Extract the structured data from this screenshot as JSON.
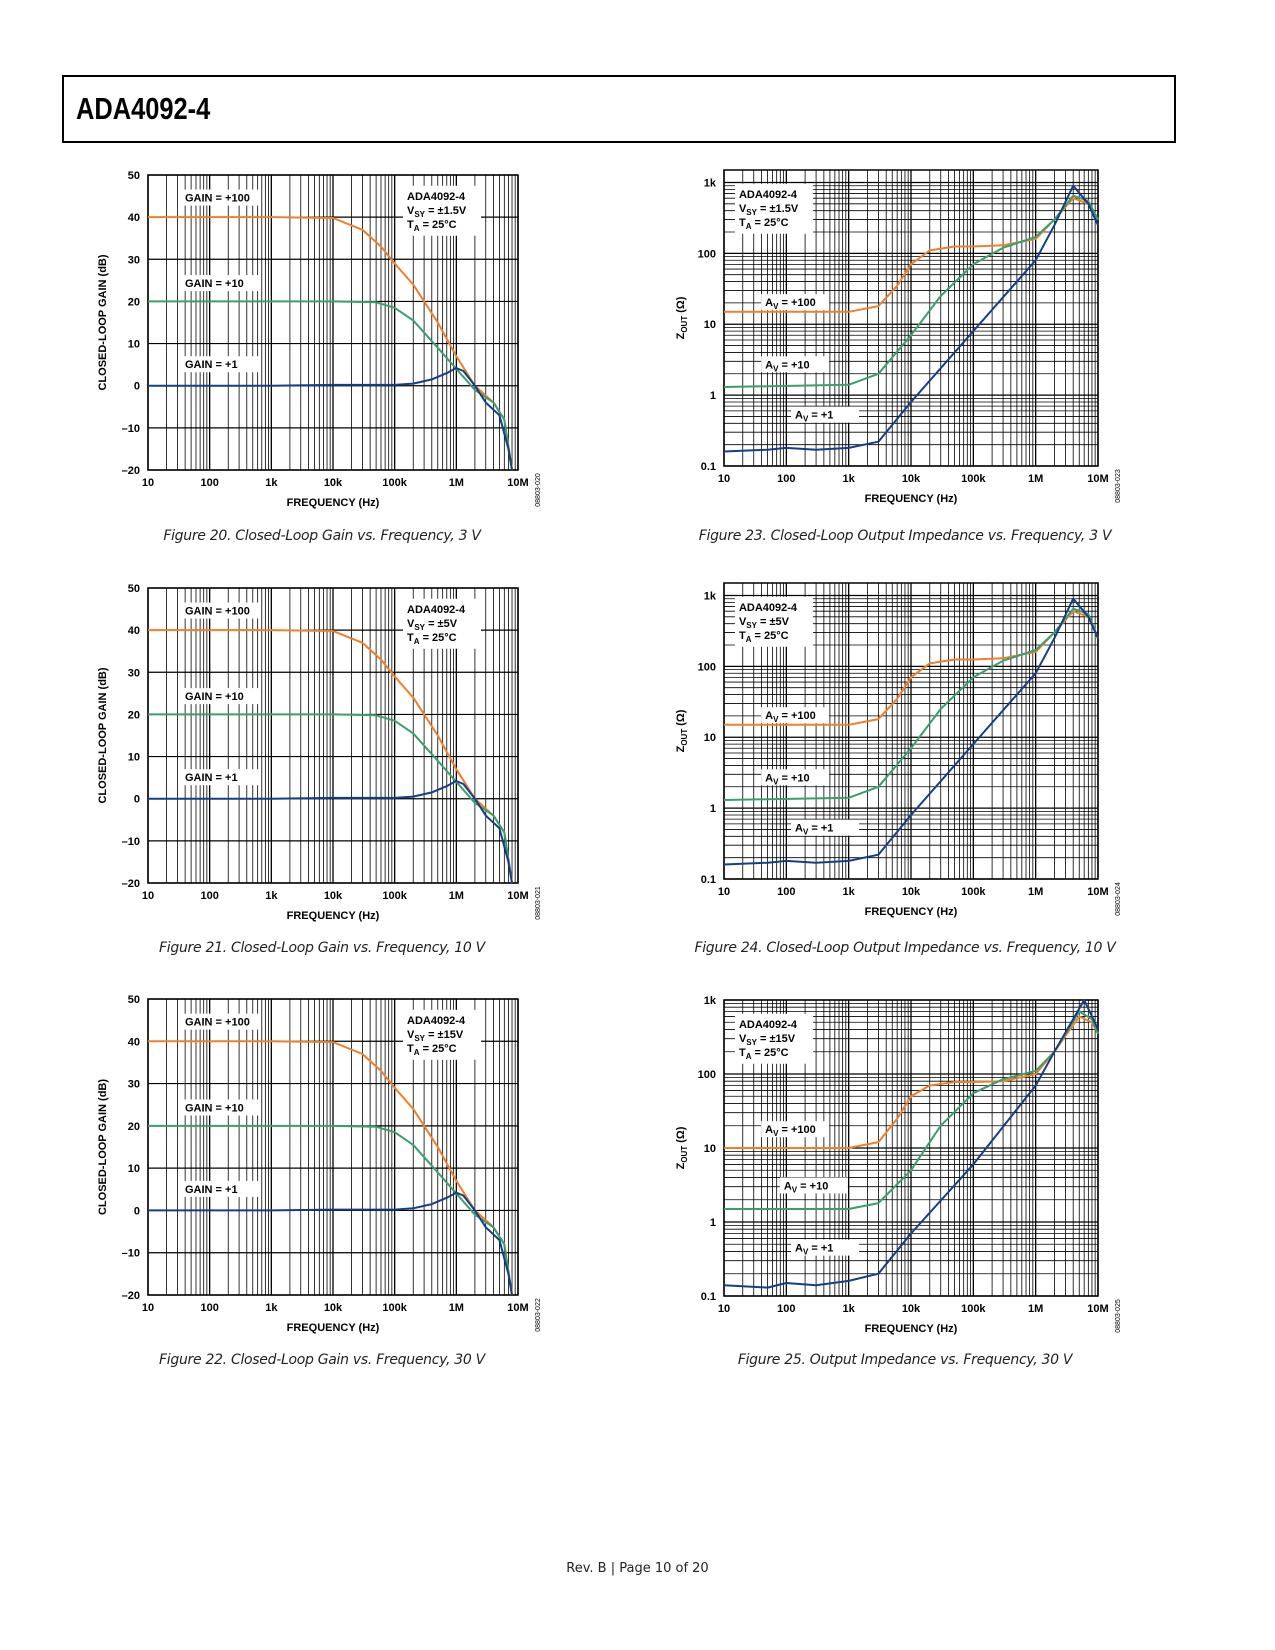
{
  "header": {
    "title": "ADA4092-4"
  },
  "footer": {
    "text": "Rev. B | Page 10 of 20"
  },
  "colors": {
    "gain100": "#f07f2a",
    "gain10": "#3a9e6e",
    "gain1": "#163e86",
    "grid": "#000000"
  },
  "chart_data": [
    {
      "id": "fig20",
      "type": "line",
      "scale": "semilogx",
      "caption": "Figure 20. Closed-Loop Gain vs. Frequency, 3 V",
      "code": "08803-020",
      "xlabel": "FREQUENCY (Hz)",
      "ylabel": "CLOSED-LOOP GAIN (dB)",
      "xlim": [
        10,
        10000000
      ],
      "ylim": [
        -20,
        50
      ],
      "xticks": [
        "10",
        "100",
        "1k",
        "10k",
        "100k",
        "1M",
        "10M"
      ],
      "yticks": [
        "50",
        "40",
        "30",
        "20",
        "10",
        "0",
        "–10",
        "–20"
      ],
      "info": [
        "ADA4092-4",
        "VSY = ±1.5V",
        "TA = 25°C"
      ],
      "labels": [
        "GAIN = +100",
        "GAIN = +10",
        "GAIN = +1"
      ],
      "series": [
        {
          "name": "GAIN = +100",
          "x": [
            10,
            1000,
            10000,
            30000,
            60000,
            100000,
            200000,
            500000,
            1000000,
            2000000,
            4000000,
            6000000,
            8000000
          ],
          "y": [
            40,
            40,
            39.8,
            37,
            33,
            29,
            24,
            15,
            7,
            0,
            -4,
            -8,
            -20
          ]
        },
        {
          "name": "GAIN = +10",
          "x": [
            10,
            1000,
            10000,
            50000,
            100000,
            200000,
            500000,
            1000000,
            2000000,
            4000000,
            6000000,
            8000000
          ],
          "y": [
            20,
            20,
            20,
            19.8,
            18.5,
            15.5,
            9,
            4,
            -1,
            -4,
            -8,
            -20
          ]
        },
        {
          "name": "GAIN = +1",
          "x": [
            10,
            1000,
            10000,
            100000,
            200000,
            400000,
            700000,
            1000000,
            1300000,
            2000000,
            3000000,
            5000000,
            7000000,
            8000000
          ],
          "y": [
            0,
            0,
            0.2,
            0.2,
            0.5,
            1.5,
            3,
            4.2,
            3.5,
            0,
            -4,
            -7,
            -15,
            -20
          ]
        }
      ]
    },
    {
      "id": "fig21",
      "type": "line",
      "scale": "semilogx",
      "caption": "Figure 21. Closed-Loop Gain vs. Frequency, 10 V",
      "code": "08803-021",
      "xlabel": "FREQUENCY (Hz)",
      "ylabel": "CLOSED-LOOP GAIN (dB)",
      "xlim": [
        10,
        10000000
      ],
      "ylim": [
        -20,
        50
      ],
      "xticks": [
        "10",
        "100",
        "1k",
        "10k",
        "100k",
        "1M",
        "10M"
      ],
      "yticks": [
        "50",
        "40",
        "30",
        "20",
        "10",
        "0",
        "–10",
        "–20"
      ],
      "info": [
        "ADA4092-4",
        "VSY = ±5V",
        "TA = 25°C"
      ],
      "labels": [
        "GAIN = +100",
        "GAIN = +10",
        "GAIN = +1"
      ],
      "series": [
        {
          "name": "GAIN = +100",
          "x": [
            10,
            1000,
            10000,
            30000,
            60000,
            100000,
            200000,
            500000,
            1000000,
            2000000,
            4000000,
            6000000,
            8000000
          ],
          "y": [
            40,
            40,
            39.8,
            37,
            33,
            29,
            24,
            15,
            7,
            0,
            -4,
            -8,
            -20
          ]
        },
        {
          "name": "GAIN = +10",
          "x": [
            10,
            1000,
            10000,
            50000,
            100000,
            200000,
            500000,
            1000000,
            2000000,
            4000000,
            6000000,
            8000000
          ],
          "y": [
            20,
            20,
            20,
            19.8,
            18.5,
            15.5,
            9,
            4,
            -1,
            -4,
            -8,
            -20
          ]
        },
        {
          "name": "GAIN = +1",
          "x": [
            10,
            1000,
            10000,
            100000,
            200000,
            400000,
            700000,
            1000000,
            1300000,
            2000000,
            3000000,
            5000000,
            7000000,
            8000000
          ],
          "y": [
            0,
            0,
            0.2,
            0.2,
            0.5,
            1.5,
            3,
            4.2,
            3.5,
            0,
            -4,
            -7,
            -15,
            -20
          ]
        }
      ]
    },
    {
      "id": "fig22",
      "type": "line",
      "scale": "semilogx",
      "caption": "Figure 22. Closed-Loop Gain vs. Frequency, 30 V",
      "code": "08803-022",
      "xlabel": "FREQUENCY (Hz)",
      "ylabel": "CLOSED-LOOP GAIN (dB)",
      "xlim": [
        10,
        10000000
      ],
      "ylim": [
        -20,
        50
      ],
      "xticks": [
        "10",
        "100",
        "1k",
        "10k",
        "100k",
        "1M",
        "10M"
      ],
      "yticks": [
        "50",
        "40",
        "30",
        "20",
        "10",
        "0",
        "–10",
        "–20"
      ],
      "info": [
        "ADA4092-4",
        "VSY = ±15V",
        "TA = 25°C"
      ],
      "labels": [
        "GAIN = +100",
        "GAIN = +10",
        "GAIN = +1"
      ],
      "series": [
        {
          "name": "GAIN = +100",
          "x": [
            10,
            1000,
            10000,
            30000,
            60000,
            100000,
            200000,
            500000,
            1000000,
            2000000,
            4000000,
            6000000,
            8000000
          ],
          "y": [
            40,
            40,
            39.8,
            37,
            33,
            29,
            24,
            15,
            7,
            0,
            -4,
            -8,
            -20
          ]
        },
        {
          "name": "GAIN = +10",
          "x": [
            10,
            1000,
            10000,
            50000,
            100000,
            200000,
            500000,
            1000000,
            2000000,
            4000000,
            6000000,
            8000000
          ],
          "y": [
            20,
            20,
            20,
            19.8,
            18.5,
            15.5,
            9,
            4,
            -1,
            -4,
            -8,
            -20
          ]
        },
        {
          "name": "GAIN = +1",
          "x": [
            10,
            1000,
            10000,
            100000,
            200000,
            400000,
            700000,
            1000000,
            1300000,
            2000000,
            3000000,
            5000000,
            7000000,
            8000000
          ],
          "y": [
            0,
            0,
            0.2,
            0.2,
            0.5,
            1.5,
            3,
            4.2,
            3.5,
            0,
            -4,
            -7,
            -15,
            -20
          ]
        }
      ]
    },
    {
      "id": "fig23",
      "type": "line",
      "scale": "loglog",
      "caption": "Figure 23. Closed-Loop Output Impedance vs. Frequency, 3 V",
      "code": "08803-023",
      "xlabel": "FREQUENCY (Hz)",
      "ylabel": "ZOUT (Ω)",
      "xlim": [
        10,
        10000000
      ],
      "ylim": [
        0.1,
        1500
      ],
      "xticks": [
        "10",
        "100",
        "1k",
        "10k",
        "100k",
        "1M",
        "10M"
      ],
      "yticks": [
        "1k",
        "100",
        "10",
        "1",
        "0.1"
      ],
      "info": [
        "ADA4092-4",
        "VSY = ±1.5V",
        "TA = 25°C"
      ],
      "labels": [
        "AV = +100",
        "AV = +10",
        "AV = +1"
      ],
      "series": [
        {
          "name": "AV = +100",
          "x": [
            10,
            1000,
            3000,
            6000,
            10000,
            20000,
            50000,
            100000,
            300000,
            1000000,
            2000000,
            4000000,
            7000000,
            10000000
          ],
          "y": [
            15,
            15,
            18,
            35,
            70,
            110,
            125,
            125,
            130,
            160,
            300,
            600,
            500,
            300
          ]
        },
        {
          "name": "AV = +10",
          "x": [
            10,
            1000,
            3000,
            10000,
            30000,
            100000,
            300000,
            1000000,
            2000000,
            4000000,
            7000000,
            10000000
          ],
          "y": [
            1.3,
            1.4,
            2,
            7,
            25,
            70,
            120,
            170,
            300,
            650,
            550,
            300
          ]
        },
        {
          "name": "AV = +1",
          "x": [
            10,
            50,
            100,
            300,
            1000,
            3000,
            10000,
            100000,
            1000000,
            2000000,
            4000000,
            7000000,
            10000000
          ],
          "y": [
            0.16,
            0.17,
            0.18,
            0.17,
            0.18,
            0.22,
            0.8,
            8,
            80,
            250,
            900,
            500,
            250
          ]
        }
      ]
    },
    {
      "id": "fig24",
      "type": "line",
      "scale": "loglog",
      "caption": "Figure 24. Closed-Loop Output Impedance vs. Frequency, 10 V",
      "code": "08803-024",
      "xlabel": "FREQUENCY (Hz)",
      "ylabel": "ZOUT (Ω)",
      "xlim": [
        10,
        10000000
      ],
      "ylim": [
        0.1,
        1500
      ],
      "xticks": [
        "10",
        "100",
        "1k",
        "10k",
        "100k",
        "1M",
        "10M"
      ],
      "yticks": [
        "1k",
        "100",
        "10",
        "1",
        "0.1"
      ],
      "info": [
        "ADA4092-4",
        "VSY = ±5V",
        "TA = 25°C"
      ],
      "labels": [
        "AV = +100",
        "AV = +10",
        "AV = +1"
      ],
      "series": [
        {
          "name": "AV = +100",
          "x": [
            10,
            1000,
            3000,
            6000,
            10000,
            20000,
            50000,
            100000,
            300000,
            1000000,
            2000000,
            4000000,
            7000000,
            10000000
          ],
          "y": [
            15,
            15,
            18,
            35,
            70,
            110,
            125,
            125,
            130,
            160,
            300,
            600,
            500,
            250
          ]
        },
        {
          "name": "AV = +10",
          "x": [
            10,
            1000,
            3000,
            10000,
            30000,
            100000,
            300000,
            1000000,
            2000000,
            4000000,
            7000000,
            10000000
          ],
          "y": [
            1.3,
            1.4,
            2,
            7,
            25,
            70,
            120,
            170,
            300,
            650,
            550,
            250
          ]
        },
        {
          "name": "AV = +1",
          "x": [
            10,
            50,
            100,
            300,
            1000,
            3000,
            10000,
            100000,
            1000000,
            2000000,
            4000000,
            7000000,
            10000000
          ],
          "y": [
            0.16,
            0.17,
            0.18,
            0.17,
            0.18,
            0.22,
            0.8,
            8,
            80,
            250,
            900,
            500,
            250
          ]
        }
      ]
    },
    {
      "id": "fig25",
      "type": "line",
      "scale": "loglog",
      "caption": "Figure 25. Output Impedance vs. Frequency, 30 V",
      "code": "08803-025",
      "xlabel": "FREQUENCY (Hz)",
      "ylabel": "ZOUT (Ω)",
      "xlim": [
        10,
        10000000
      ],
      "ylim": [
        0.1,
        1000
      ],
      "xticks": [
        "10",
        "100",
        "1k",
        "10k",
        "100k",
        "1M",
        "10M"
      ],
      "yticks": [
        "1k",
        "100",
        "10",
        "1",
        "0.1"
      ],
      "info": [
        "ADA4092-4",
        "VSY = ±15V",
        "TA = 25°C"
      ],
      "labels": [
        "AV = +100",
        "AV = +10",
        "AV = +1"
      ],
      "series": [
        {
          "name": "AV = +100",
          "x": [
            10,
            1000,
            3000,
            6000,
            10000,
            20000,
            50000,
            100000,
            300000,
            1000000,
            2000000,
            5000000,
            8000000,
            10000000
          ],
          "y": [
            10,
            10,
            12,
            25,
            50,
            70,
            78,
            78,
            80,
            100,
            200,
            600,
            500,
            350
          ]
        },
        {
          "name": "AV = +10",
          "x": [
            10,
            1000,
            3000,
            10000,
            30000,
            100000,
            300000,
            1000000,
            2000000,
            5000000,
            8000000,
            10000000
          ],
          "y": [
            1.5,
            1.5,
            1.8,
            5,
            20,
            55,
            85,
            110,
            200,
            700,
            550,
            350
          ]
        },
        {
          "name": "AV = +1",
          "x": [
            10,
            50,
            100,
            300,
            1000,
            3000,
            10000,
            100000,
            1000000,
            2000000,
            6000000,
            8000000,
            10000000
          ],
          "y": [
            0.14,
            0.13,
            0.15,
            0.14,
            0.16,
            0.2,
            0.7,
            6,
            70,
            200,
            1000,
            600,
            400
          ]
        }
      ]
    }
  ]
}
